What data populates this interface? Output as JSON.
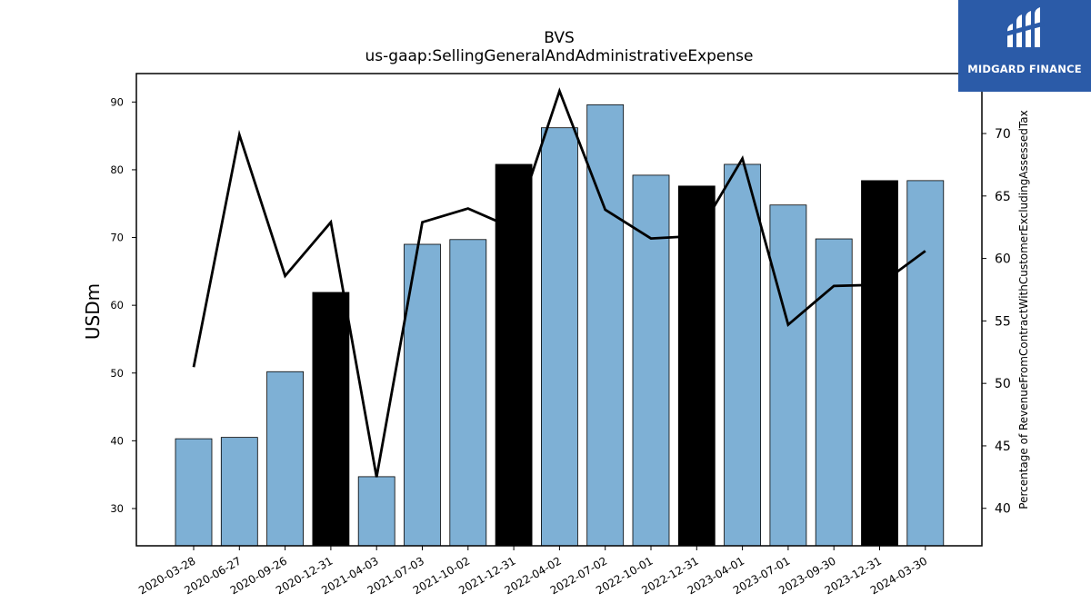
{
  "logo": {
    "text": "MIDGARD FINANCE",
    "color": "#2b5ba8"
  },
  "chart_data": {
    "type": "bar",
    "title": "BVS",
    "subtitle": "us-gaap:SellingGeneralAndAdministrativeExpense",
    "ylabel": "USDm",
    "y2label": "Percentage of RevenueFromContractWithCustomerExcludingAssessedTax",
    "ylim": [
      24.5,
      94.2
    ],
    "y2lim": [
      37.0,
      74.8
    ],
    "yticks": [
      30,
      40,
      50,
      60,
      70,
      80,
      90
    ],
    "y2ticks": [
      40,
      45,
      50,
      55,
      60,
      65,
      70
    ],
    "categories": [
      "2020-03-28",
      "2020-06-27",
      "2020-09-26",
      "2020-12-31",
      "2021-04-03",
      "2021-07-03",
      "2021-10-02",
      "2021-12-31",
      "2022-04-02",
      "2022-07-02",
      "2022-10-01",
      "2022-12-31",
      "2023-04-01",
      "2023-07-01",
      "2023-09-30",
      "2023-12-31",
      "2024-03-30"
    ],
    "series": [
      {
        "kind": "bar",
        "axis": "left",
        "values": [
          40.3,
          40.5,
          50.2,
          61.9,
          34.7,
          69.0,
          69.7,
          80.8,
          86.2,
          89.6,
          79.2,
          77.6,
          80.8,
          74.8,
          69.8,
          78.4,
          78.4
        ],
        "quarter_end_highlight": [
          false,
          false,
          false,
          true,
          false,
          false,
          false,
          true,
          false,
          false,
          false,
          true,
          false,
          false,
          false,
          true,
          false
        ]
      },
      {
        "kind": "line",
        "axis": "right",
        "values": [
          51.3,
          69.9,
          58.6,
          62.9,
          42.5,
          62.9,
          64.0,
          62.4,
          73.4,
          63.9,
          61.6,
          61.8,
          68.0,
          54.7,
          57.8,
          57.9,
          60.6
        ]
      }
    ],
    "colors": {
      "bar": "#7eb0d5",
      "bar_highlight": "#000000",
      "line": "#000000"
    },
    "grid": false,
    "legend": "none"
  }
}
